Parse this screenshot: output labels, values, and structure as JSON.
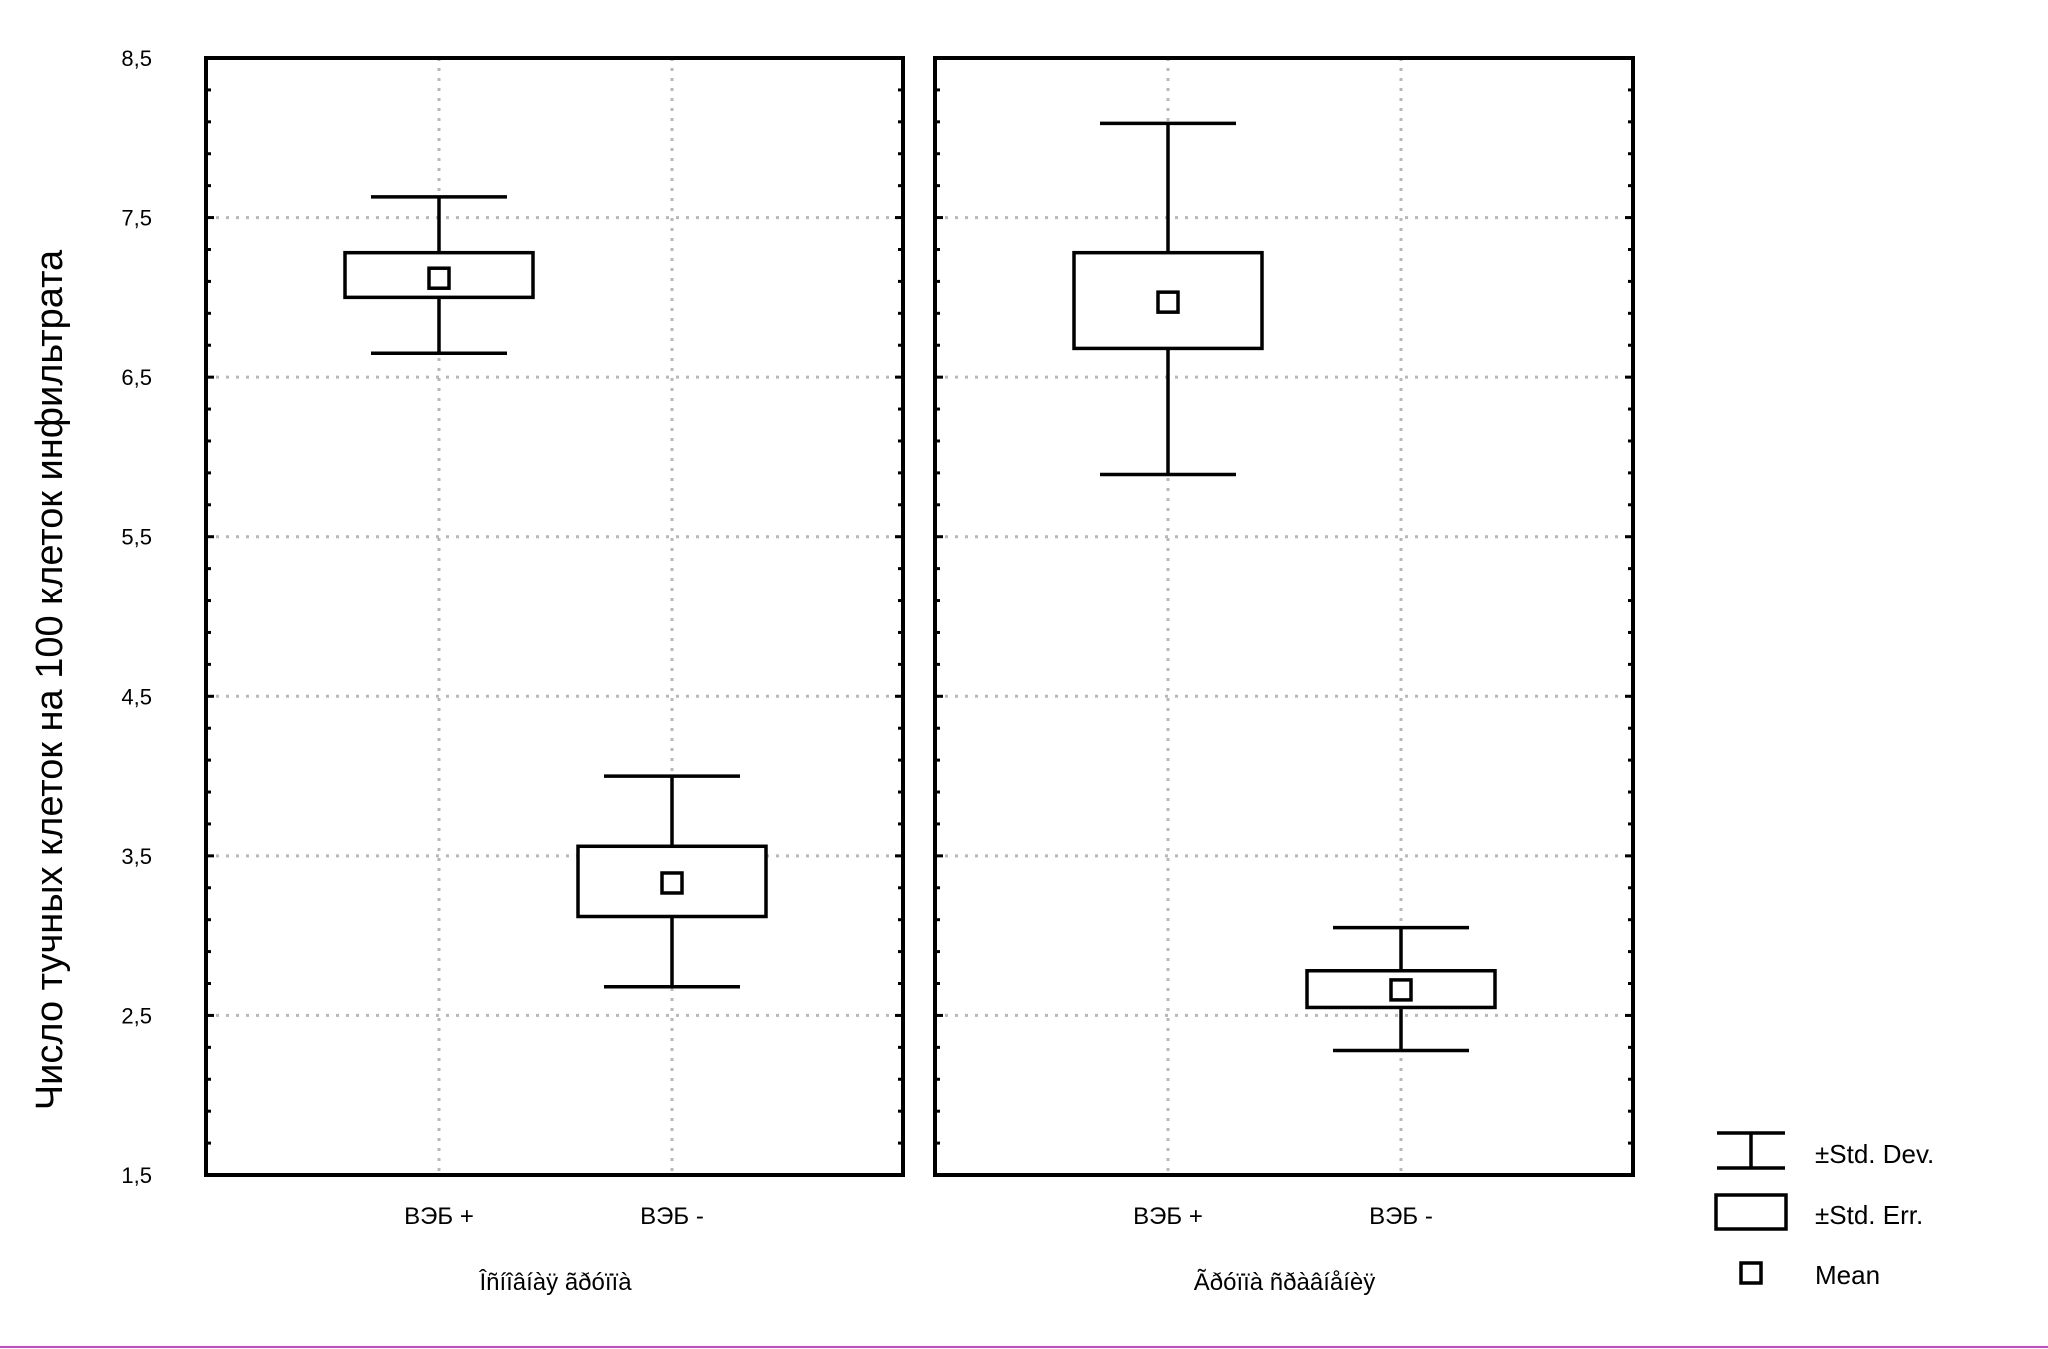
{
  "chart_data": {
    "type": "box",
    "ylabel": "Число тучных клеток на 100 клеток инфильтрата",
    "ylim": [
      1.5,
      8.5
    ],
    "yticks": [
      "1,5",
      "2,5",
      "3,5",
      "4,5",
      "5,5",
      "6,5",
      "7,5",
      "8,5"
    ],
    "ytick_values": [
      1.5,
      2.5,
      3.5,
      4.5,
      5.5,
      6.5,
      7.5,
      8.5
    ],
    "grid": true,
    "legend_position": "bottom-right",
    "legend": {
      "std_dev": "±Std. Dev.",
      "std_err": "±Std. Err.",
      "mean": "Mean"
    },
    "panels": [
      {
        "group_label": "Îñíîâíàÿ ãðóïïà",
        "categories": [
          "ВЭБ +",
          "ВЭБ -"
        ],
        "mean": [
          7.12,
          3.33
        ],
        "se_low": [
          7.0,
          3.12
        ],
        "se_high": [
          7.28,
          3.56
        ],
        "sd_low": [
          6.65,
          2.68
        ],
        "sd_high": [
          7.63,
          4.0
        ]
      },
      {
        "group_label": "Ãðóïïà ñðàâíåíèÿ",
        "categories": [
          "ВЭБ +",
          "ВЭБ -"
        ],
        "mean": [
          6.97,
          2.66
        ],
        "se_low": [
          6.68,
          2.55
        ],
        "se_high": [
          7.28,
          2.78
        ],
        "sd_low": [
          5.89,
          2.28
        ],
        "sd_high": [
          8.09,
          3.05
        ]
      }
    ]
  }
}
